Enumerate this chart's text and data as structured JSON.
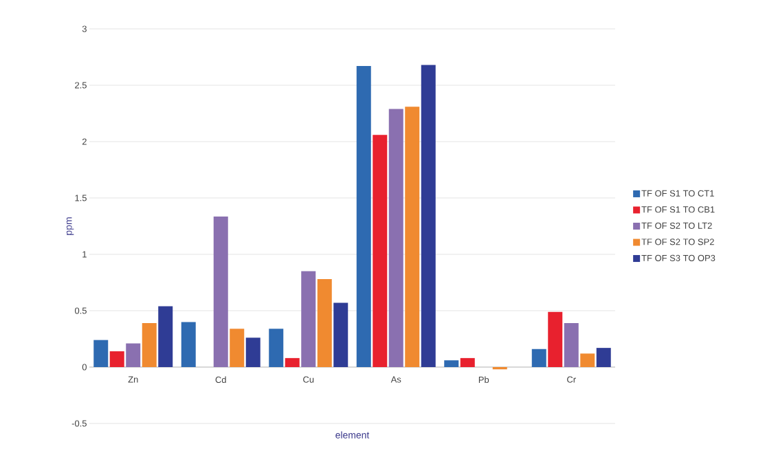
{
  "chart_data": {
    "type": "bar",
    "xlabel": "element",
    "ylabel": "ppm",
    "categories": [
      "Zn",
      "Cd",
      "Cu",
      "As",
      "Pb",
      "Cr"
    ],
    "series": [
      {
        "name": "TF OF S1 TO CT1",
        "color": "#2e6ab1",
        "values": [
          0.24,
          0.4,
          0.34,
          2.67,
          0.06,
          0.16
        ]
      },
      {
        "name": "TF OF S1 TO CB1",
        "color": "#e8212e",
        "values": [
          0.14,
          0,
          0.08,
          2.06,
          0.08,
          0.49
        ]
      },
      {
        "name": "TF OF S2 TO LT2",
        "color": "#8a70b0",
        "values": [
          0.21,
          1.335,
          0.85,
          2.29,
          0,
          0.39
        ]
      },
      {
        "name": "TF OF S2 TO SP2",
        "color": "#f08a30",
        "values": [
          0.39,
          0.34,
          0.78,
          2.31,
          -0.02,
          0.12
        ]
      },
      {
        "name": "TF OF S3 TO OP3",
        "color": "#2f3c95",
        "values": [
          0.54,
          0.26,
          0.57,
          2.68,
          0,
          0.17
        ]
      }
    ],
    "ylim": [
      -0.5,
      3
    ],
    "yticks": [
      -0.5,
      0,
      0.5,
      1,
      1.5,
      2,
      2.5,
      3
    ],
    "grid": "y",
    "legend": "right"
  }
}
